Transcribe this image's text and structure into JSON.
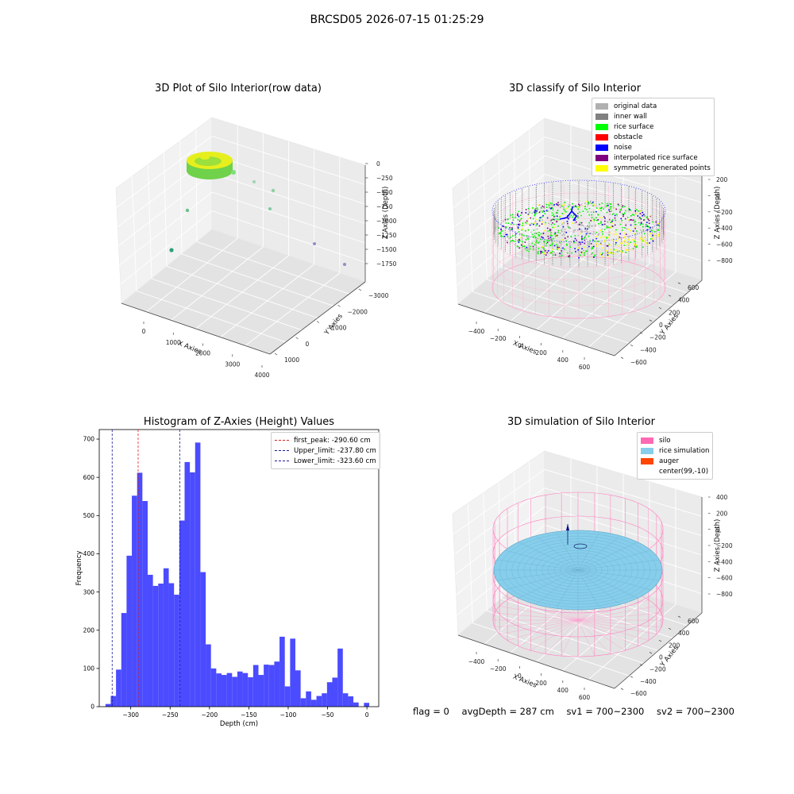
{
  "figure": {
    "suptitle": "BRCSD05 2026-07-15 01:25:29"
  },
  "panels": {
    "raw": {
      "title": "3D Plot of Silo Interior(row data)",
      "xlabel": "X Axies",
      "ylabel": "Y Axies",
      "zlabel": "Z Axies (Depth)",
      "xticks": [
        "0",
        "1000",
        "2000",
        "3000",
        "4000"
      ],
      "yticks": [
        "1000",
        "0",
        "−1000",
        "−2000",
        "−3000"
      ],
      "zticks": [
        "0",
        "−250",
        "−500",
        "−750",
        "−1000",
        "−1250",
        "−1500",
        "−1750"
      ],
      "colors": {
        "surface": "#9be03c",
        "surface_hi": "#e6ef1d",
        "surface_dark": "#6fd24a",
        "outlier": "#2e9f78",
        "outlier_far": "#8f90c8"
      }
    },
    "classify": {
      "title": "3D classify of Silo Interior",
      "xlabel": "X Axies",
      "ylabel": "Y Axies",
      "zlabel": "Z Axies (Depth)",
      "xticks": [
        "−400",
        "−200",
        "0",
        "200",
        "400",
        "600"
      ],
      "yticks": [
        "600",
        "400",
        "200",
        "0",
        "−200",
        "−400",
        "−600"
      ],
      "zticks": [
        "200",
        "0",
        "−200",
        "−400",
        "−600",
        "−800"
      ],
      "legend": [
        {
          "label": "original data",
          "color": "#b0b0b0"
        },
        {
          "label": "inner wall",
          "color": "#808080"
        },
        {
          "label": "rice surface",
          "color": "#00ff00"
        },
        {
          "label": "obstacle",
          "color": "#ff0000"
        },
        {
          "label": "noise",
          "color": "#0000ff"
        },
        {
          "label": "interpolated rice surface",
          "color": "#800080"
        },
        {
          "label": "symmetric generated points",
          "color": "#ffff00"
        }
      ]
    },
    "histogram": {
      "title": "Histogram of Z-Axies (Height) Values",
      "xlabel": "Depth (cm)",
      "ylabel": "Frequency",
      "bar_color": "#4b4bff",
      "legend": [
        {
          "label": "first_peak: -290.60 cm",
          "color": "#e02020"
        },
        {
          "label": "Upper_limit: -237.80 cm",
          "color": "#1a1aa0"
        },
        {
          "label": "Lower_limit: -323.60 cm",
          "color": "#1a1aa0"
        }
      ]
    },
    "simulation": {
      "title": "3D simulation of Silo Interior",
      "xlabel": "X Axies",
      "ylabel": "Y Axies",
      "zlabel": "Z Axies (Depth)",
      "xticks": [
        "−400",
        "−200",
        "0",
        "200",
        "400",
        "600"
      ],
      "yticks": [
        "600",
        "400",
        "200",
        "0",
        "−200",
        "−400",
        "−600"
      ],
      "zticks": [
        "400",
        "200",
        "0",
        "−200",
        "−400",
        "−600",
        "−800"
      ],
      "legend": [
        {
          "label": "silo",
          "color": "#ff69b4"
        },
        {
          "label": "rice simulation",
          "color": "#87ceeb"
        },
        {
          "label": "auger",
          "color": "#ff4500"
        },
        {
          "label": "center(99,-10)",
          "color": ""
        }
      ]
    }
  },
  "status": {
    "flag": "flag = 0",
    "avg_depth": "avgDepth = 287 cm",
    "sv1": "sv1 = 700~2300",
    "sv2": "sv2 = 700~2300"
  },
  "chart_data": [
    {
      "type": "scatter",
      "title": "3D Plot of Silo Interior(row data)",
      "xlabel": "X Axies",
      "ylabel": "Y Axies",
      "zlabel": "Z Axies (Depth)",
      "xlim": [
        -600,
        4200
      ],
      "ylim": [
        -3300,
        1500
      ],
      "zlim": [
        -1900,
        100
      ],
      "grid": true
    },
    {
      "type": "scatter",
      "title": "3D classify of Silo Interior",
      "xlabel": "X Axies",
      "ylabel": "Y Axies",
      "zlabel": "Z Axies (Depth)",
      "xlim": [
        -500,
        700
      ],
      "ylim": [
        -700,
        700
      ],
      "zlim": [
        -900,
        300
      ],
      "series": [
        {
          "name": "original data"
        },
        {
          "name": "inner wall"
        },
        {
          "name": "rice surface"
        },
        {
          "name": "obstacle"
        },
        {
          "name": "noise"
        },
        {
          "name": "interpolated rice surface"
        },
        {
          "name": "symmetric generated points"
        }
      ],
      "legend_position": "top-right",
      "grid": true
    },
    {
      "type": "bar",
      "title": "Histogram of Z-Axies (Height) Values",
      "xlabel": "Depth (cm)",
      "ylabel": "Frequency",
      "xlim": [
        -340,
        15
      ],
      "ylim": [
        0,
        725
      ],
      "xticks": [
        -300,
        -250,
        -200,
        -150,
        -100,
        -50,
        0
      ],
      "yticks": [
        0,
        100,
        200,
        300,
        400,
        500,
        600,
        700
      ],
      "bin_width": 6.7,
      "bin_start": -332.1,
      "values": [
        7,
        28,
        97,
        245,
        395,
        552,
        612,
        538,
        345,
        316,
        322,
        362,
        323,
        293,
        487,
        640,
        613,
        691,
        352,
        163,
        100,
        87,
        83,
        88,
        78,
        92,
        88,
        77,
        109,
        83,
        110,
        109,
        118,
        183,
        53,
        178,
        95,
        22,
        40,
        18,
        28,
        35,
        64,
        76,
        152,
        35,
        27,
        11,
        0,
        10
      ],
      "vlines": [
        {
          "name": "first_peak: -290.60 cm",
          "x": -290.6
        },
        {
          "name": "Upper_limit: -237.80 cm",
          "x": -237.8
        },
        {
          "name": "Lower_limit: -323.60 cm",
          "x": -323.6
        }
      ],
      "legend_position": "top-right",
      "grid": false
    },
    {
      "type": "scatter",
      "title": "3D simulation of Silo Interior",
      "xlabel": "X Axies",
      "ylabel": "Y Axies",
      "zlabel": "Z Axies (Depth)",
      "xlim": [
        -500,
        700
      ],
      "ylim": [
        -700,
        700
      ],
      "zlim": [
        -900,
        500
      ],
      "series": [
        {
          "name": "silo"
        },
        {
          "name": "rice simulation"
        },
        {
          "name": "auger"
        },
        {
          "name": "center(99,-10)"
        }
      ],
      "legend_position": "top-right",
      "grid": true
    }
  ]
}
